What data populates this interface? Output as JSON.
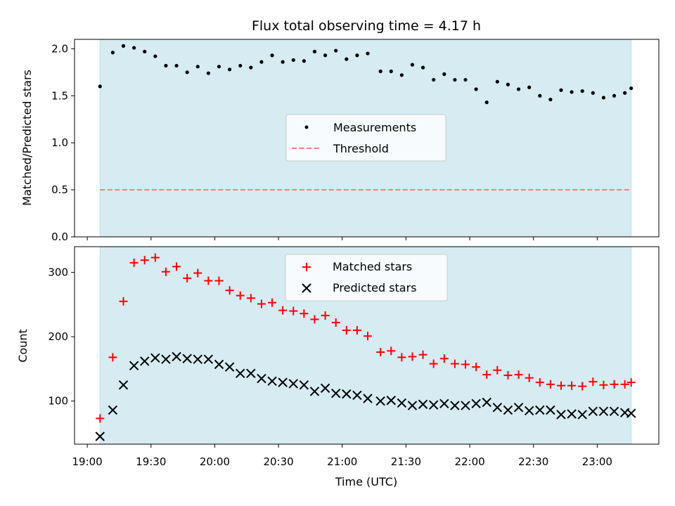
{
  "chart_data": {
    "title": "Flux total observing time = 4.17 h",
    "xlabel": "Time (UTC)",
    "x_ticks": [
      "19:00",
      "19:30",
      "20:00",
      "20:30",
      "21:00",
      "21:30",
      "22:00",
      "22:30",
      "23:00"
    ],
    "x_range": [
      "18:54",
      "23:29"
    ],
    "shaded_interval": [
      "19:06",
      "23:16"
    ],
    "times": [
      "19:06",
      "19:12",
      "19:17",
      "19:22",
      "19:27",
      "19:32",
      "19:37",
      "19:42",
      "19:47",
      "19:52",
      "19:57",
      "20:02",
      "20:07",
      "20:12",
      "20:17",
      "20:22",
      "20:27",
      "20:32",
      "20:37",
      "20:42",
      "20:47",
      "20:52",
      "20:57",
      "21:02",
      "21:07",
      "21:12",
      "21:18",
      "21:23",
      "21:28",
      "21:33",
      "21:38",
      "21:43",
      "21:48",
      "21:53",
      "21:58",
      "22:03",
      "22:08",
      "22:13",
      "22:18",
      "22:23",
      "22:28",
      "22:33",
      "22:38",
      "22:43",
      "22:48",
      "22:53",
      "22:58",
      "23:03",
      "23:08",
      "23:13",
      "23:16"
    ],
    "charts": [
      {
        "type": "scatter",
        "ylabel": "Matched/Predicted stars",
        "ylim": [
          0,
          2.1
        ],
        "y_ticks": [
          "0.0",
          "0.5",
          "1.0",
          "1.5",
          "2.0"
        ],
        "legend_position": "center",
        "series": [
          {
            "name": "Measurements",
            "marker": "dot",
            "color": "#000000",
            "values": [
              1.6,
              1.96,
              2.03,
              2.01,
              1.97,
              1.92,
              1.82,
              1.82,
              1.75,
              1.81,
              1.74,
              1.81,
              1.78,
              1.82,
              1.8,
              1.86,
              1.93,
              1.86,
              1.88,
              1.87,
              1.97,
              1.93,
              1.98,
              1.89,
              1.93,
              1.95,
              1.76,
              1.76,
              1.72,
              1.83,
              1.8,
              1.67,
              1.73,
              1.67,
              1.67,
              1.57,
              1.43,
              1.65,
              1.62,
              1.57,
              1.59,
              1.5,
              1.46,
              1.56,
              1.54,
              1.55,
              1.53,
              1.48,
              1.5,
              1.53,
              1.58
            ]
          },
          {
            "name": "Threshold",
            "style": "dashed",
            "color": "#f08080",
            "value": 0.5
          }
        ]
      },
      {
        "type": "scatter",
        "ylabel": "Count",
        "ylim": [
          33,
          340
        ],
        "y_ticks": [
          "100",
          "200",
          "300"
        ],
        "legend_position": "upper center",
        "series": [
          {
            "name": "Matched stars",
            "marker": "plus",
            "color": "#ff0000",
            "values": [
              73,
              168,
              255,
              315,
              319,
              323,
              301,
              309,
              291,
              299,
              287,
              287,
              272,
              264,
              260,
              251,
              253,
              241,
              240,
              236,
              227,
              233,
              222,
              210,
              210,
              201,
              176,
              178,
              168,
              169,
              172,
              158,
              166,
              158,
              157,
              153,
              141,
              148,
              140,
              141,
              136,
              129,
              126,
              124,
              124,
              123,
              130,
              125,
              126,
              126,
              129
            ]
          },
          {
            "name": "Predicted stars",
            "marker": "x",
            "color": "#000000",
            "values": [
              45,
              86,
              125,
              155,
              162,
              167,
              165,
              169,
              166,
              165,
              165,
              157,
              153,
              143,
              143,
              135,
              131,
              129,
              127,
              125,
              115,
              120,
              112,
              111,
              109,
              104,
              100,
              101,
              97,
              93,
              95,
              94,
              96,
              93,
              93,
              96,
              98,
              90,
              86,
              90,
              85,
              86,
              86,
              79,
              80,
              79,
              84,
              84,
              84,
              82,
              81
            ]
          }
        ]
      }
    ]
  }
}
